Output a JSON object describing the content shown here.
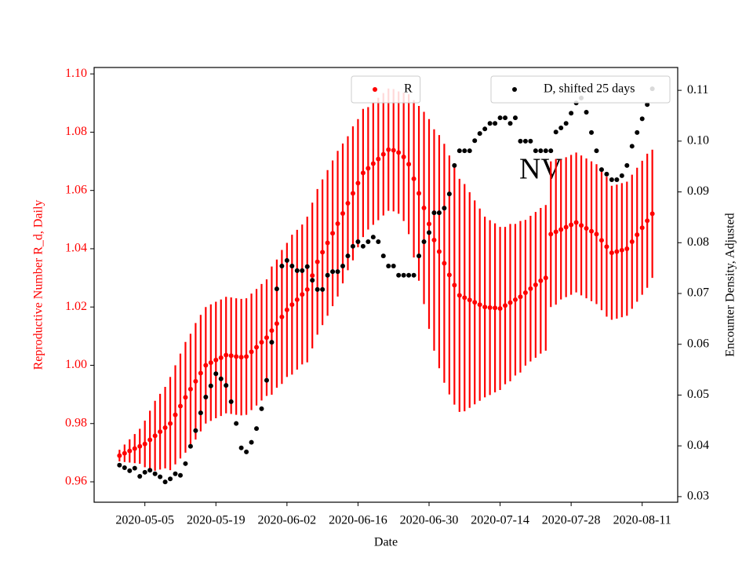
{
  "chart_data": {
    "type": "errorbar",
    "annotation": "NV",
    "xlabel": "Date",
    "ylabel": "Reproductive Number R_d, Daily",
    "y2label": "Encounter Density, Adjusted",
    "xlim": [
      "2020-04-25",
      "2020-08-18"
    ],
    "xticks": [
      "2020-05-05",
      "2020-05-19",
      "2020-06-02",
      "2020-06-16",
      "2020-06-30",
      "2020-07-14",
      "2020-07-28",
      "2020-08-11"
    ],
    "ylim": [
      0.953,
      1.1022
    ],
    "yticks": [
      0.96,
      0.98,
      {
        "value": 1,
        "label": "1.00"
      },
      1.02,
      1.04,
      1.06,
      1.08,
      {
        "value": 1.1,
        "label": "1.10"
      }
    ],
    "y2lim": [
      0.0289,
      0.1145
    ],
    "y2ticks": [
      0.03,
      0.04,
      0.05,
      0.06,
      0.07,
      0.08,
      0.09,
      {
        "value": 0.1,
        "label": "0.10"
      },
      0.11
    ],
    "ylabel_color": "#ff0000",
    "x": [
      "2020-04-30",
      "2020-05-01",
      "2020-05-02",
      "2020-05-03",
      "2020-05-04",
      "2020-05-05",
      "2020-05-06",
      "2020-05-07",
      "2020-05-08",
      "2020-05-09",
      "2020-05-10",
      "2020-05-11",
      "2020-05-12",
      "2020-05-13",
      "2020-05-14",
      "2020-05-15",
      "2020-05-16",
      "2020-05-17",
      "2020-05-18",
      "2020-05-19",
      "2020-05-20",
      "2020-05-21",
      "2020-05-22",
      "2020-05-23",
      "2020-05-24",
      "2020-05-25",
      "2020-05-26",
      "2020-05-27",
      "2020-05-28",
      "2020-05-29",
      "2020-05-30",
      "2020-05-31",
      "2020-06-01",
      "2020-06-02",
      "2020-06-03",
      "2020-06-04",
      "2020-06-05",
      "2020-06-06",
      "2020-06-07",
      "2020-06-08",
      "2020-06-09",
      "2020-06-10",
      "2020-06-11",
      "2020-06-12",
      "2020-06-13",
      "2020-06-14",
      "2020-06-15",
      "2020-06-16",
      "2020-06-17",
      "2020-06-18",
      "2020-06-19",
      "2020-06-20",
      "2020-06-21",
      "2020-06-22",
      "2020-06-23",
      "2020-06-24",
      "2020-06-25",
      "2020-06-26",
      "2020-06-27",
      "2020-06-28",
      "2020-06-29",
      "2020-06-30",
      "2020-07-01",
      "2020-07-02",
      "2020-07-03",
      "2020-07-04",
      "2020-07-05",
      "2020-07-06",
      "2020-07-07",
      "2020-07-08",
      "2020-07-09",
      "2020-07-10",
      "2020-07-11",
      "2020-07-12",
      "2020-07-13",
      "2020-07-14",
      "2020-07-15",
      "2020-07-16",
      "2020-07-17",
      "2020-07-18",
      "2020-07-19",
      "2020-07-20",
      "2020-07-21",
      "2020-07-22",
      "2020-07-23",
      "2020-07-24",
      "2020-07-25",
      "2020-07-26",
      "2020-07-27",
      "2020-07-28",
      "2020-07-29",
      "2020-07-30",
      "2020-07-31",
      "2020-08-01",
      "2020-08-02",
      "2020-08-03",
      "2020-08-04",
      "2020-08-05",
      "2020-08-06",
      "2020-08-07",
      "2020-08-08",
      "2020-08-09",
      "2020-08-10",
      "2020-08-11",
      "2020-08-12",
      "2020-08-13"
    ],
    "series": [
      {
        "name": "R",
        "color": "#ff0000",
        "legend_loc": "upper center",
        "values": [
          0.969,
          0.9698,
          0.9706,
          0.9714,
          0.9722,
          0.973,
          0.9744,
          0.9758,
          0.9772,
          0.9786,
          0.98,
          0.983,
          0.986,
          0.989,
          0.9918,
          0.9945,
          0.9973,
          1.0,
          1.0009,
          1.0018,
          1.0026,
          1.0035,
          1.0033,
          1.003,
          1.0028,
          1.003,
          1.0046,
          1.0062,
          1.0079,
          1.0095,
          1.0119,
          1.0143,
          1.0166,
          1.019,
          1.0208,
          1.0225,
          1.0243,
          1.026,
          1.0308,
          1.0355,
          1.0388,
          1.042,
          1.0453,
          1.0486,
          1.0521,
          1.0556,
          1.059,
          1.0625,
          1.066,
          1.0676,
          1.0692,
          1.0708,
          1.0724,
          1.074,
          1.0738,
          1.073,
          1.0715,
          1.069,
          1.064,
          1.059,
          1.054,
          1.0485,
          1.043,
          1.039,
          1.035,
          1.031,
          1.0275,
          1.024,
          1.0232,
          1.0224,
          1.0216,
          1.0208,
          1.02,
          1.0198,
          1.0197,
          1.0195,
          1.0205,
          1.0215,
          1.0225,
          1.0235,
          1.0249,
          1.0263,
          1.0276,
          1.029,
          1.03,
          1.045,
          1.0458,
          1.0466,
          1.0474,
          1.0482,
          1.049,
          1.048,
          1.047,
          1.046,
          1.045,
          1.0429,
          1.0407,
          1.0386,
          1.039,
          1.0395,
          1.04,
          1.0424,
          1.0448,
          1.0472,
          1.0496,
          1.052
        ],
        "errors": [
          0.002,
          0.003,
          0.004,
          0.005,
          0.006,
          0.008,
          0.01,
          0.012,
          0.013,
          0.014,
          0.016,
          0.017,
          0.018,
          0.019,
          0.019,
          0.02,
          0.02,
          0.02,
          0.02,
          0.02,
          0.02,
          0.02,
          0.02,
          0.02,
          0.02,
          0.02,
          0.02,
          0.02,
          0.02,
          0.02,
          0.022,
          0.022,
          0.023,
          0.023,
          0.024,
          0.024,
          0.024,
          0.025,
          0.025,
          0.025,
          0.025,
          0.025,
          0.025,
          0.025,
          0.024,
          0.023,
          0.023,
          0.022,
          0.022,
          0.021,
          0.021,
          0.021,
          0.021,
          0.021,
          0.021,
          0.021,
          0.022,
          0.024,
          0.027,
          0.03,
          0.033,
          0.036,
          0.038,
          0.04,
          0.041,
          0.041,
          0.041,
          0.04,
          0.039,
          0.037,
          0.035,
          0.033,
          0.031,
          0.03,
          0.029,
          0.028,
          0.027,
          0.027,
          0.026,
          0.026,
          0.025,
          0.025,
          0.025,
          0.025,
          0.025,
          0.025,
          0.025,
          0.024,
          0.024,
          0.024,
          0.024,
          0.024,
          0.024,
          0.024,
          0.024,
          0.024,
          0.024,
          0.023,
          0.023,
          0.023,
          0.023,
          0.023,
          0.023,
          0.023,
          0.023,
          0.022
        ]
      },
      {
        "name": "D, shifted 25 days",
        "color": "#000000",
        "axis": "y2",
        "legend_loc": "upper right",
        "values": [
          0.0362,
          0.0357,
          0.0351,
          0.0356,
          0.034,
          0.0348,
          0.0352,
          0.0345,
          0.0339,
          0.0329,
          0.0335,
          0.0345,
          0.0342,
          0.0365,
          0.0399,
          0.043,
          0.0465,
          0.0496,
          0.0518,
          0.0542,
          0.0532,
          0.0519,
          0.0487,
          0.0444,
          0.0396,
          0.0388,
          0.0407,
          0.0434,
          0.0473,
          0.0529,
          0.0604,
          0.0709,
          0.0754,
          0.0765,
          0.0754,
          0.0745,
          0.0745,
          0.0753,
          0.0726,
          0.0708,
          0.0708,
          0.0736,
          0.0743,
          0.0743,
          0.0754,
          0.0774,
          0.0793,
          0.0802,
          0.0793,
          0.0802,
          0.0811,
          0.0802,
          0.0774,
          0.0754,
          0.0754,
          0.0736,
          0.0736,
          0.0736,
          0.0736,
          0.0774,
          0.0802,
          0.082,
          0.0859,
          0.0859,
          0.0868,
          0.0896,
          0.0952,
          0.0981,
          0.0981,
          0.0981,
          0.1001,
          0.1015,
          0.1024,
          0.1035,
          0.1035,
          0.1046,
          0.1046,
          0.1035,
          0.1046,
          0.1,
          0.1,
          0.1,
          0.0981,
          0.0981,
          0.0981,
          0.0981,
          0.1018,
          0.1026,
          0.1035,
          0.1055,
          0.1075,
          0.1085,
          0.1057,
          0.1017,
          0.0981,
          0.0944,
          0.0935,
          0.0924,
          0.0924,
          0.0932,
          0.0952,
          0.099,
          0.1017,
          0.1044,
          0.1072,
          0.1103
        ]
      }
    ]
  }
}
